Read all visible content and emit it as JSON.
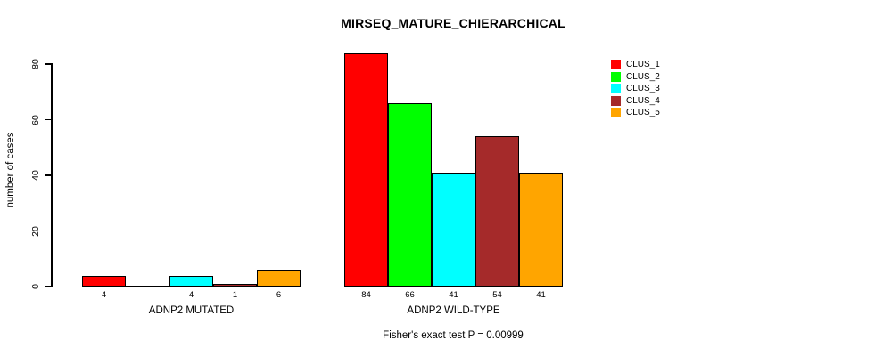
{
  "chart_data": {
    "type": "bar",
    "title": "MIRSEQ_MATURE_CHIERARCHICAL",
    "ylabel": "number of cases",
    "xlabel": "",
    "ylim": [
      0,
      88
    ],
    "yticks": [
      0,
      20,
      40,
      60,
      80
    ],
    "grid": false,
    "legend_position": "top-right",
    "legend": [
      {
        "name": "CLUS_1",
        "color": "#FF0000"
      },
      {
        "name": "CLUS_2",
        "color": "#00FF00"
      },
      {
        "name": "CLUS_3",
        "color": "#00FFFF"
      },
      {
        "name": "CLUS_4",
        "color": "#A52A2A"
      },
      {
        "name": "CLUS_5",
        "color": "#FFA500"
      }
    ],
    "categories": [
      "CLUS_1",
      "CLUS_2",
      "CLUS_3",
      "CLUS_4",
      "CLUS_5"
    ],
    "groups": [
      {
        "label": "ADNP2 MUTATED",
        "values": [
          4,
          0,
          4,
          1,
          6
        ],
        "bar_labels": [
          "4",
          "",
          "4",
          "1",
          "6"
        ]
      },
      {
        "label": "ADNP2 WILD-TYPE",
        "values": [
          84,
          66,
          41,
          54,
          41
        ],
        "bar_labels": [
          "84",
          "66",
          "41",
          "54",
          "41"
        ]
      }
    ],
    "annotation": "Fisher's exact test P = 0.00999"
  }
}
